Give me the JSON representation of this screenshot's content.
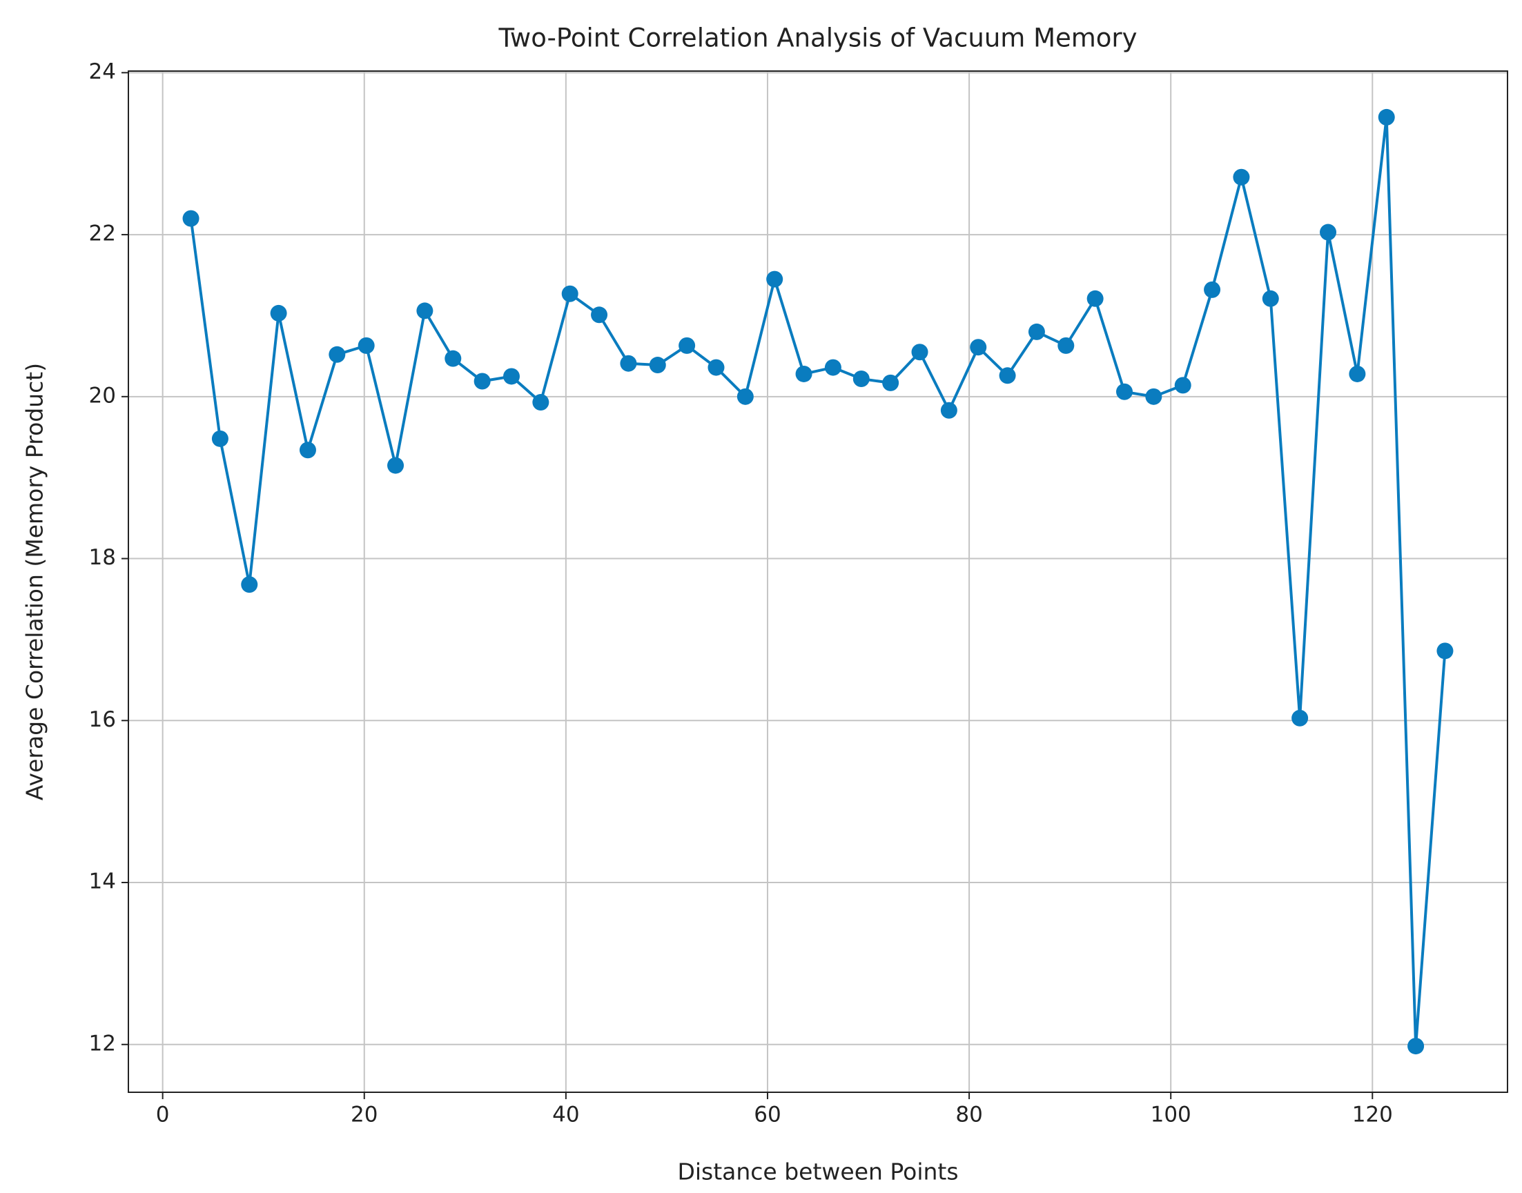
{
  "chart_data": {
    "type": "line",
    "title": "Two-Point Correlation Analysis of Vacuum Memory",
    "xlabel": "Distance between Points",
    "ylabel": "Average Correlation (Memory Product)",
    "x": [
      2.8,
      5.7,
      8.6,
      11.5,
      14.4,
      17.3,
      20.2,
      23.1,
      26.0,
      28.8,
      31.7,
      34.6,
      37.5,
      40.4,
      43.3,
      46.2,
      49.1,
      52.0,
      54.9,
      57.8,
      60.7,
      63.6,
      66.5,
      69.3,
      72.2,
      75.1,
      78.0,
      80.9,
      83.8,
      86.7,
      89.6,
      92.5,
      95.4,
      98.3,
      101.2,
      104.1,
      107.0,
      109.9,
      112.8,
      115.6,
      118.5,
      121.4,
      124.3,
      127.2
    ],
    "series": [
      {
        "color": "#0a7cbf",
        "values": [
          22.2,
          19.48,
          17.68,
          21.03,
          19.34,
          20.52,
          20.63,
          19.15,
          21.06,
          20.47,
          20.19,
          20.25,
          19.93,
          21.27,
          21.01,
          20.41,
          20.39,
          20.63,
          20.36,
          20.0,
          21.45,
          20.28,
          20.36,
          20.22,
          20.17,
          20.55,
          19.83,
          20.61,
          20.26,
          20.8,
          20.63,
          21.21,
          20.06,
          20.0,
          20.14,
          21.32,
          22.71,
          21.21,
          16.03,
          22.03,
          20.28,
          23.45,
          11.98,
          16.86
        ]
      }
    ],
    "xlim": [
      -3.4,
      133.4
    ],
    "ylim": [
      11.41,
      24.02
    ],
    "xticks": [
      0,
      20,
      40,
      60,
      80,
      100,
      120
    ],
    "yticks": [
      12,
      14,
      16,
      18,
      20,
      22,
      24
    ],
    "grid": true,
    "marker": "circle"
  }
}
